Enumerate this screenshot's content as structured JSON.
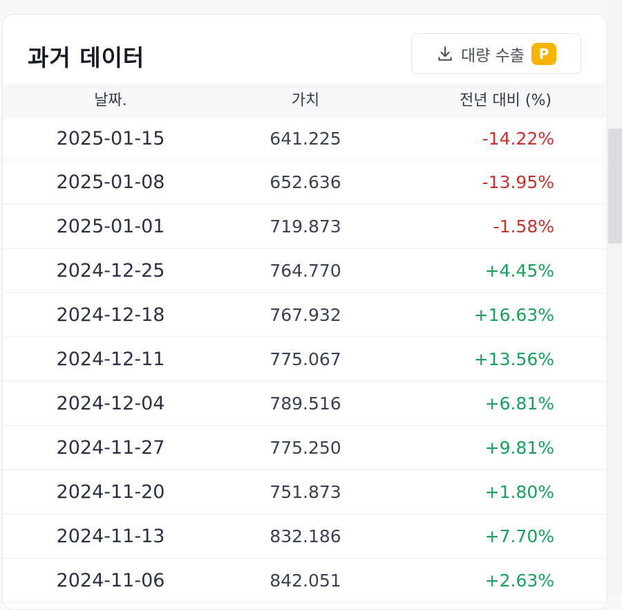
{
  "card": {
    "title": "과거 데이터",
    "export_label": "대량 수출",
    "premium_badge": "P"
  },
  "table": {
    "columns": [
      "날짜.",
      "가치",
      "전년 대비 (%)"
    ],
    "rows": [
      {
        "date": "2025-01-15",
        "value": "641.225",
        "change": "-14.22%",
        "trend": "negative"
      },
      {
        "date": "2025-01-08",
        "value": "652.636",
        "change": "-13.95%",
        "trend": "negative"
      },
      {
        "date": "2025-01-01",
        "value": "719.873",
        "change": "-1.58%",
        "trend": "negative"
      },
      {
        "date": "2024-12-25",
        "value": "764.770",
        "change": "+4.45%",
        "trend": "positive"
      },
      {
        "date": "2024-12-18",
        "value": "767.932",
        "change": "+16.63%",
        "trend": "positive"
      },
      {
        "date": "2024-12-11",
        "value": "775.067",
        "change": "+13.56%",
        "trend": "positive"
      },
      {
        "date": "2024-12-04",
        "value": "789.516",
        "change": "+6.81%",
        "trend": "positive"
      },
      {
        "date": "2024-11-27",
        "value": "775.250",
        "change": "+9.81%",
        "trend": "positive"
      },
      {
        "date": "2024-11-20",
        "value": "751.873",
        "change": "+1.80%",
        "trend": "positive"
      },
      {
        "date": "2024-11-13",
        "value": "832.186",
        "change": "+7.70%",
        "trend": "positive"
      },
      {
        "date": "2024-11-06",
        "value": "842.051",
        "change": "+2.63%",
        "trend": "positive"
      }
    ]
  },
  "colors": {
    "negative": "#c9302c",
    "positive": "#16a05a",
    "badge": "#f7b500"
  },
  "icons": {
    "export": "download-icon"
  }
}
